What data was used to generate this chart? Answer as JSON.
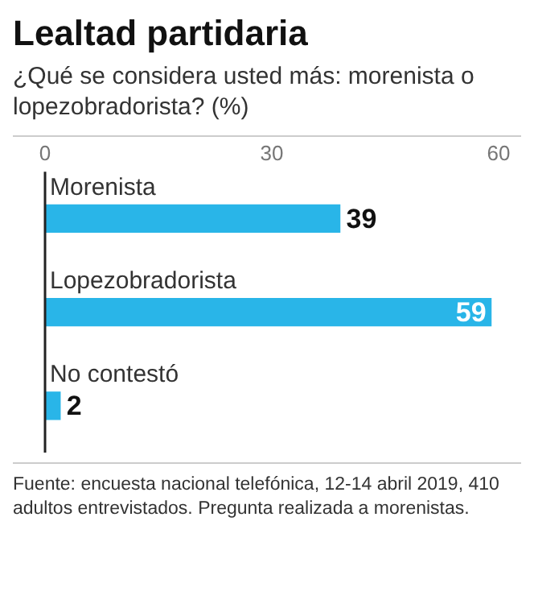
{
  "chart_data": {
    "type": "bar",
    "orientation": "horizontal",
    "title": "Lealtad partidaria",
    "subtitle": "¿Qué se considera usted más: morenista o lopezobradorista? (%)",
    "categories": [
      "Morenista",
      "Lopezobradorista",
      "No contestó"
    ],
    "values": [
      39,
      59,
      2
    ],
    "color": "#29b5e8",
    "xlim": [
      0,
      60
    ],
    "xticks": [
      0,
      30,
      60
    ],
    "grid": false,
    "data_labels": true,
    "annotations": [
      "Fuente: encuesta nacional telefónica, 12-14 abril 2019, 410 adultos entrevistados. Pregunta realizada a morenistas."
    ]
  }
}
